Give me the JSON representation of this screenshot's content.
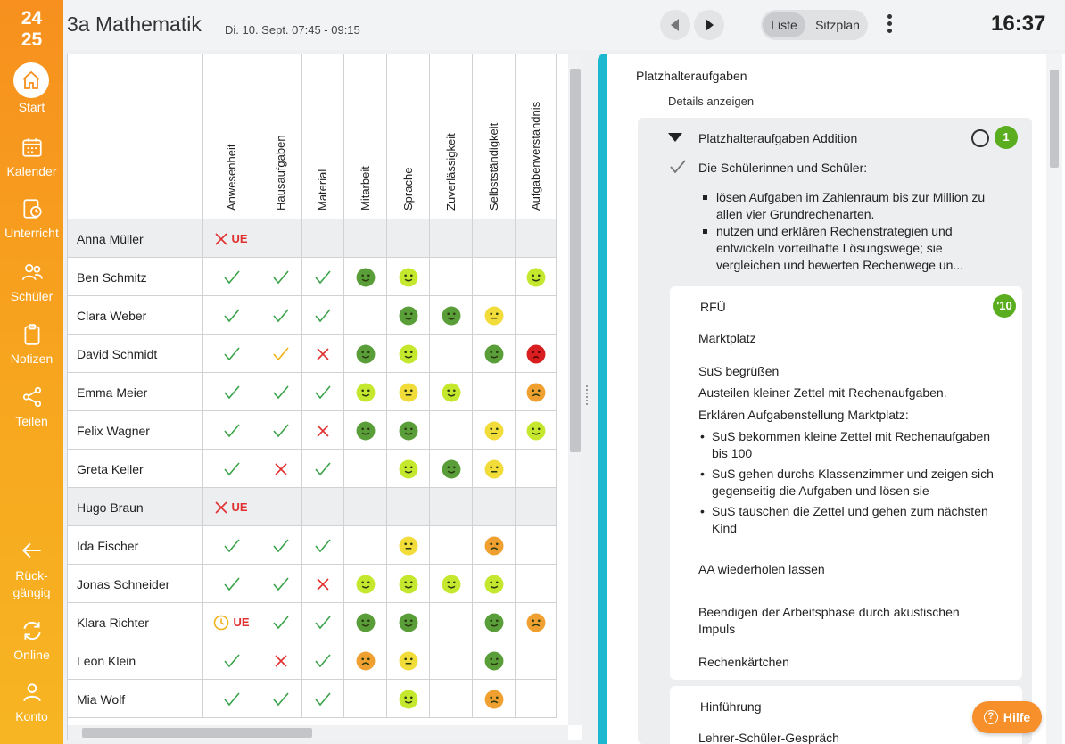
{
  "sidebar": {
    "year_top": "24",
    "year_bottom": "25",
    "items": [
      {
        "label": "Start",
        "icon": "home-icon"
      },
      {
        "label": "Kalender",
        "icon": "calendar-icon"
      },
      {
        "label": "Unterricht",
        "icon": "lesson-icon"
      },
      {
        "label": "Schüler",
        "icon": "students-icon"
      },
      {
        "label": "Notizen",
        "icon": "notes-icon"
      },
      {
        "label": "Teilen",
        "icon": "share-icon"
      }
    ],
    "bottom_items": [
      {
        "label_line1": "Rück-",
        "label_line2": "gängig",
        "icon": "undo-icon"
      },
      {
        "label": "Online",
        "icon": "sync-icon"
      },
      {
        "label": "Konto",
        "icon": "account-icon"
      }
    ]
  },
  "header": {
    "title": "3a Mathematik",
    "subtitle": "Di. 10. Sept. 07:45 - 09:15",
    "toggle_on": "Liste",
    "toggle_off": "Sitzplan",
    "clock": "16:37"
  },
  "table": {
    "columns": [
      "Anwesenheit",
      "Hausaufgaben",
      "Material",
      "Mitarbeit",
      "Sprache",
      "Zuverlässigkeit",
      "Selbstständigkeit",
      "Aufgabenverständnis"
    ],
    "ue_label": "UE",
    "rows": [
      {
        "name": "Anna Müller",
        "absent": true,
        "cells": [
          "x-ue",
          "",
          "",
          "",
          "",
          "",
          "",
          ""
        ]
      },
      {
        "name": "Ben Schmitz",
        "absent": false,
        "cells": [
          "check",
          "check",
          "check",
          "dark",
          "lime",
          "",
          "",
          "lime"
        ]
      },
      {
        "name": "Clara Weber",
        "absent": false,
        "cells": [
          "check",
          "check",
          "check",
          "",
          "dark",
          "dark",
          "yellow",
          ""
        ]
      },
      {
        "name": "David Schmidt",
        "absent": false,
        "cells": [
          "check",
          "check-yellow",
          "x",
          "dark",
          "lime",
          "",
          "dark",
          "red"
        ]
      },
      {
        "name": "Emma Meier",
        "absent": false,
        "cells": [
          "check",
          "check",
          "check",
          "lime",
          "yellow",
          "lime",
          "",
          "orange"
        ]
      },
      {
        "name": "Felix Wagner",
        "absent": false,
        "cells": [
          "check",
          "check",
          "x",
          "dark",
          "dark",
          "",
          "yellow",
          "lime"
        ]
      },
      {
        "name": "Greta Keller",
        "absent": false,
        "cells": [
          "check",
          "x",
          "check",
          "",
          "lime",
          "dark",
          "yellow",
          ""
        ]
      },
      {
        "name": "Hugo Braun",
        "absent": true,
        "cells": [
          "x-ue",
          "",
          "",
          "",
          "",
          "",
          "",
          ""
        ]
      },
      {
        "name": "Ida Fischer",
        "absent": false,
        "cells": [
          "check",
          "check",
          "check",
          "",
          "yellow",
          "",
          "orange",
          ""
        ]
      },
      {
        "name": "Jonas Schneider",
        "absent": false,
        "cells": [
          "check",
          "check",
          "x",
          "lime",
          "lime",
          "lime",
          "lime",
          ""
        ]
      },
      {
        "name": "Klara Richter",
        "absent": false,
        "cells": [
          "clock-ue",
          "check",
          "check",
          "dark",
          "dark",
          "",
          "dark",
          "orange"
        ]
      },
      {
        "name": "Leon Klein",
        "absent": false,
        "cells": [
          "check",
          "x",
          "check",
          "orange",
          "yellow",
          "",
          "dark",
          ""
        ]
      },
      {
        "name": "Mia Wolf",
        "absent": false,
        "cells": [
          "check",
          "check",
          "check",
          "",
          "lime",
          "",
          "orange",
          ""
        ]
      }
    ],
    "mood_colors": {
      "dark": "#5a9e3a",
      "lime": "#c5e82e",
      "yellow": "#f2dc3a",
      "orange": "#f0a030",
      "red": "#d81e1e"
    }
  },
  "detail": {
    "section_title": "Platzhalteraufgaben",
    "details_link": "Details anzeigen",
    "task_title": "Platzhalteraufgaben Addition",
    "task_badge": "1",
    "goals_lead": "Die Schülerinnen und Schüler:",
    "goals": [
      "lösen Aufgaben im Zahlenraum bis zur Million zu allen vier Grundrechenarten.",
      "nutzen und erklären Rechenstrategien und entwickeln vorteilhafte Lösungswege; sie vergleichen und bewerten Rechenwege un..."
    ],
    "phase1": {
      "title": "RFÜ",
      "badge": "'10",
      "subtitle": "Marktplatz",
      "line1": "SuS begrüßen",
      "line2": "Austeilen kleiner Zettel mit Rechenaufgaben.",
      "line3": "Erklären Aufgabenstellung Marktplatz:",
      "list": [
        "SuS bekommen kleine Zettel mit Rechenaufgaben bis 100",
        "SuS gehen durchs Klassenzimmer und zeigen sich gegenseitig die Aufgaben und lösen sie",
        "SuS tauschen die Zettel und gehen zum nächsten Kind"
      ],
      "line4": "AA wiederholen lassen",
      "line5": "Beendigen der Arbeitsphase durch akustischen Impuls",
      "line6": "Rechenkärtchen"
    },
    "phase2": {
      "title": "Hinführung",
      "subtitle": "Lehrer-Schüler-Gespräch"
    }
  },
  "help_label": "Hilfe"
}
